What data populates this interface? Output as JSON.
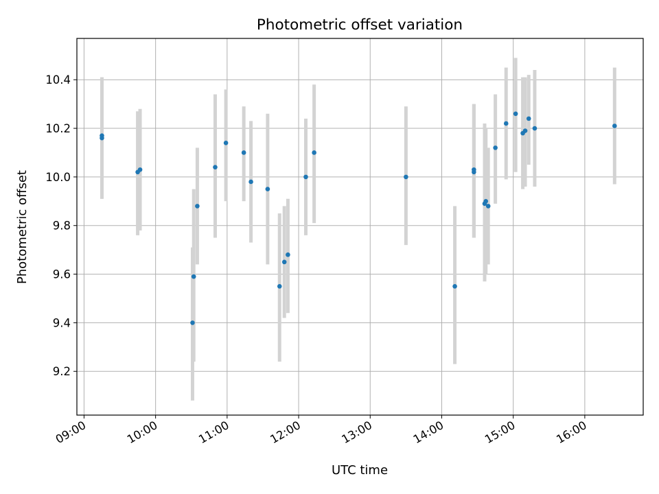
{
  "chart_data": {
    "type": "scatter",
    "title": "Photometric offset variation",
    "xlabel": "UTC time",
    "ylabel": "Photometric offset",
    "xlim": [
      "08:54",
      "16:49"
    ],
    "ylim": [
      9.02,
      10.57
    ],
    "x_ticks": [
      "09:00",
      "10:00",
      "11:00",
      "12:00",
      "13:00",
      "14:00",
      "15:00",
      "16:00"
    ],
    "y_ticks": [
      9.2,
      9.4,
      9.6,
      9.8,
      10.0,
      10.2,
      10.4
    ],
    "grid": true,
    "colors": {
      "point": "#1f77b4",
      "errorbar": "#d3d3d3",
      "grid": "#b0b0b0"
    },
    "points": [
      {
        "x": "09:15",
        "y": 10.17,
        "low": 9.91,
        "high": 10.41
      },
      {
        "x": "09:15",
        "y": 10.16,
        "low": 9.91,
        "high": 10.41
      },
      {
        "x": "09:45",
        "y": 10.02,
        "low": 9.76,
        "high": 10.27
      },
      {
        "x": "09:47",
        "y": 10.03,
        "low": 9.78,
        "high": 10.28
      },
      {
        "x": "10:31",
        "y": 9.4,
        "low": 9.08,
        "high": 9.71
      },
      {
        "x": "10:32",
        "y": 9.59,
        "low": 9.24,
        "high": 9.95
      },
      {
        "x": "10:35",
        "y": 9.88,
        "low": 9.64,
        "high": 10.12
      },
      {
        "x": "10:50",
        "y": 10.04,
        "low": 9.75,
        "high": 10.34
      },
      {
        "x": "10:59",
        "y": 10.14,
        "low": 9.9,
        "high": 10.36
      },
      {
        "x": "11:14",
        "y": 10.1,
        "low": 9.9,
        "high": 10.29
      },
      {
        "x": "11:20",
        "y": 9.98,
        "low": 9.73,
        "high": 10.23
      },
      {
        "x": "11:34",
        "y": 9.95,
        "low": 9.64,
        "high": 10.26
      },
      {
        "x": "11:44",
        "y": 9.55,
        "low": 9.24,
        "high": 9.85
      },
      {
        "x": "11:48",
        "y": 9.65,
        "low": 9.42,
        "high": 9.88
      },
      {
        "x": "11:51",
        "y": 9.68,
        "low": 9.44,
        "high": 9.91
      },
      {
        "x": "12:06",
        "y": 10.0,
        "low": 9.76,
        "high": 10.24
      },
      {
        "x": "12:13",
        "y": 10.1,
        "low": 9.81,
        "high": 10.38
      },
      {
        "x": "13:30",
        "y": 10.0,
        "low": 9.72,
        "high": 10.29
      },
      {
        "x": "14:11",
        "y": 9.55,
        "low": 9.23,
        "high": 9.88
      },
      {
        "x": "14:27",
        "y": 10.02,
        "low": 9.75,
        "high": 10.3
      },
      {
        "x": "14:27",
        "y": 10.03,
        "low": 9.75,
        "high": 10.3
      },
      {
        "x": "14:36",
        "y": 9.89,
        "low": 9.57,
        "high": 10.22
      },
      {
        "x": "14:37",
        "y": 9.9,
        "low": 9.6,
        "high": 10.2
      },
      {
        "x": "14:39",
        "y": 9.88,
        "low": 9.64,
        "high": 10.12
      },
      {
        "x": "14:45",
        "y": 10.12,
        "low": 9.89,
        "high": 10.34
      },
      {
        "x": "14:54",
        "y": 10.22,
        "low": 9.99,
        "high": 10.45
      },
      {
        "x": "15:02",
        "y": 10.26,
        "low": 10.02,
        "high": 10.49
      },
      {
        "x": "15:08",
        "y": 10.18,
        "low": 9.95,
        "high": 10.41
      },
      {
        "x": "15:10",
        "y": 10.19,
        "low": 9.96,
        "high": 10.41
      },
      {
        "x": "15:13",
        "y": 10.24,
        "low": 10.05,
        "high": 10.42
      },
      {
        "x": "15:18",
        "y": 10.2,
        "low": 9.96,
        "high": 10.44
      },
      {
        "x": "16:25",
        "y": 10.21,
        "low": 9.97,
        "high": 10.45
      }
    ]
  }
}
